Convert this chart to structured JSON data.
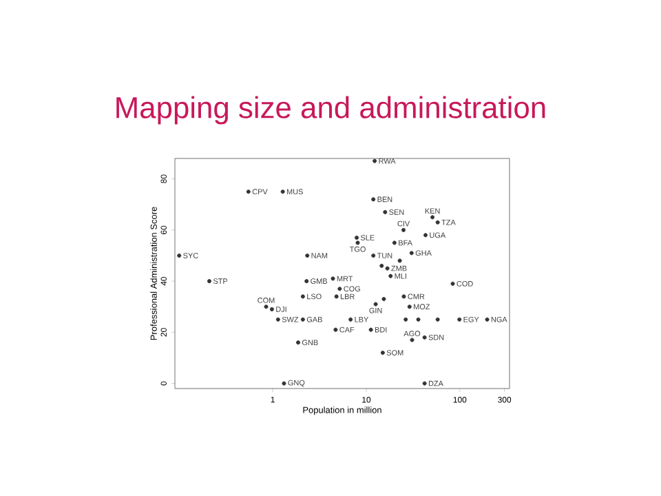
{
  "chart_data": {
    "type": "scatter",
    "title": "Mapping size and administration",
    "xlabel": "Population in million",
    "ylabel": "Professional Administration Score",
    "log": "x",
    "marker": "circle",
    "color": "#333333",
    "xlim": [
      0.09,
      340
    ],
    "ylim": [
      -2,
      88
    ],
    "xticks": [
      1,
      10,
      100,
      300
    ],
    "yticks": [
      0,
      20,
      40,
      60,
      80
    ],
    "x": [
      0.1,
      0.21,
      0.55,
      1.28,
      2.34,
      2.3,
      2.1,
      0.85,
      0.98,
      1.14,
      2.1,
      1.87,
      1.32,
      4.4,
      5.2,
      4.8,
      4.7,
      6.8,
      12.3,
      11.9,
      15.9,
      51,
      58,
      25,
      43,
      7.9,
      8.1,
      20,
      30.5,
      11.9,
      16.8,
      14.6,
      22.8,
      18.2,
      84,
      12.6,
      15.4,
      25.2,
      29,
      26.4,
      36,
      58,
      99,
      196,
      11.2,
      42,
      30.9,
      15,
      42
    ],
    "values": [
      50,
      40,
      75,
      75,
      50,
      40,
      34,
      30,
      29,
      25,
      25,
      16,
      0,
      41,
      37,
      34,
      21,
      25,
      87,
      72,
      67,
      65,
      63,
      60,
      58,
      57,
      55,
      55,
      51,
      50,
      45,
      46,
      48,
      42,
      39,
      31,
      33,
      34,
      30,
      25,
      25,
      25,
      25,
      25,
      21,
      18,
      17,
      12,
      0
    ],
    "annotations": [
      {
        "text": "SYC",
        "x": 0.1,
        "y": 50
      },
      {
        "text": "STP",
        "x": 0.21,
        "y": 40
      },
      {
        "text": "CPV",
        "x": 0.55,
        "y": 75
      },
      {
        "text": "MUS",
        "x": 1.28,
        "y": 75
      },
      {
        "text": "NAM",
        "x": 2.34,
        "y": 50
      },
      {
        "text": "GMB",
        "x": 2.3,
        "y": 40
      },
      {
        "text": "LSO",
        "x": 2.1,
        "y": 34
      },
      {
        "text": "COM",
        "x": 0.85,
        "y": 30
      },
      {
        "text": "DJI",
        "x": 0.98,
        "y": 29
      },
      {
        "text": "SWZ",
        "x": 1.14,
        "y": 25
      },
      {
        "text": "GAB",
        "x": 2.1,
        "y": 25
      },
      {
        "text": "GNB",
        "x": 1.87,
        "y": 16
      },
      {
        "text": "GNQ",
        "x": 1.32,
        "y": 0
      },
      {
        "text": "MRT",
        "x": 4.4,
        "y": 41
      },
      {
        "text": "COG",
        "x": 5.2,
        "y": 37
      },
      {
        "text": "LBR",
        "x": 4.8,
        "y": 34
      },
      {
        "text": "CAF",
        "x": 4.7,
        "y": 21
      },
      {
        "text": "LBY",
        "x": 6.8,
        "y": 25
      },
      {
        "text": "RWA",
        "x": 12.3,
        "y": 87
      },
      {
        "text": "BEN",
        "x": 11.9,
        "y": 72
      },
      {
        "text": "SEN",
        "x": 15.9,
        "y": 67
      },
      {
        "text": "KEN",
        "x": 51,
        "y": 65
      },
      {
        "text": "TZA",
        "x": 58,
        "y": 63
      },
      {
        "text": "CIV",
        "x": 25,
        "y": 60
      },
      {
        "text": "UGA",
        "x": 43,
        "y": 58
      },
      {
        "text": "SLE",
        "x": 7.9,
        "y": 57
      },
      {
        "text": "TGO",
        "x": 8.1,
        "y": 55
      },
      {
        "text": "BFA",
        "x": 20,
        "y": 55
      },
      {
        "text": "GHA",
        "x": 30.5,
        "y": 51
      },
      {
        "text": "TUN",
        "x": 11.9,
        "y": 50
      },
      {
        "text": "ZMB",
        "x": 16.8,
        "y": 45
      },
      {
        "text": "MLI",
        "x": 18.2,
        "y": 42
      },
      {
        "text": "COD",
        "x": 84,
        "y": 39
      },
      {
        "text": "GIN",
        "x": 12.6,
        "y": 31
      },
      {
        "text": "CMR",
        "x": 25.2,
        "y": 34
      },
      {
        "text": "MOZ",
        "x": 29,
        "y": 30
      },
      {
        "text": "EGY",
        "x": 99,
        "y": 25
      },
      {
        "text": "NGA",
        "x": 196,
        "y": 25
      },
      {
        "text": "BDI",
        "x": 11.2,
        "y": 21
      },
      {
        "text": "SDN",
        "x": 42,
        "y": 18
      },
      {
        "text": "AGO",
        "x": 30.9,
        "y": 17
      },
      {
        "text": "SOM",
        "x": 15,
        "y": 12
      },
      {
        "text": "DZA",
        "x": 42,
        "y": 0
      }
    ]
  }
}
